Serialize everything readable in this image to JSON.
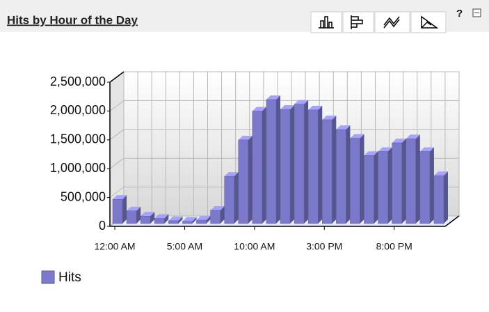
{
  "toolbar": {
    "help": "?"
  },
  "chart_data": {
    "type": "bar",
    "title": "Hits by Hour of the Day",
    "categories": [
      "12:00 AM",
      null,
      null,
      null,
      null,
      "5:00 AM",
      null,
      null,
      null,
      null,
      "10:00 AM",
      null,
      null,
      null,
      null,
      "3:00 PM",
      null,
      null,
      null,
      null,
      "8:00 PM",
      null,
      null,
      null
    ],
    "series": [
      {
        "name": "Hits",
        "color": "#7b79c9",
        "values": [
          420000,
          220000,
          130000,
          90000,
          50000,
          40000,
          60000,
          230000,
          820000,
          1450000,
          1950000,
          2150000,
          1980000,
          2070000,
          1970000,
          1800000,
          1630000,
          1480000,
          1180000,
          1250000,
          1400000,
          1470000,
          1250000,
          830000
        ]
      }
    ],
    "ylim": [
      0,
      2500000
    ],
    "yticks": [
      0,
      {
        "value": 500000,
        "label": "500,000"
      },
      {
        "value": 1000000,
        "label": "1,000,000"
      },
      {
        "value": 1500000,
        "label": "1,500,000"
      },
      {
        "value": 2000000,
        "label": "2,000,000"
      },
      {
        "value": 2500000,
        "label": "2,500,000"
      }
    ],
    "grid": true,
    "legend": "bottom-left"
  }
}
